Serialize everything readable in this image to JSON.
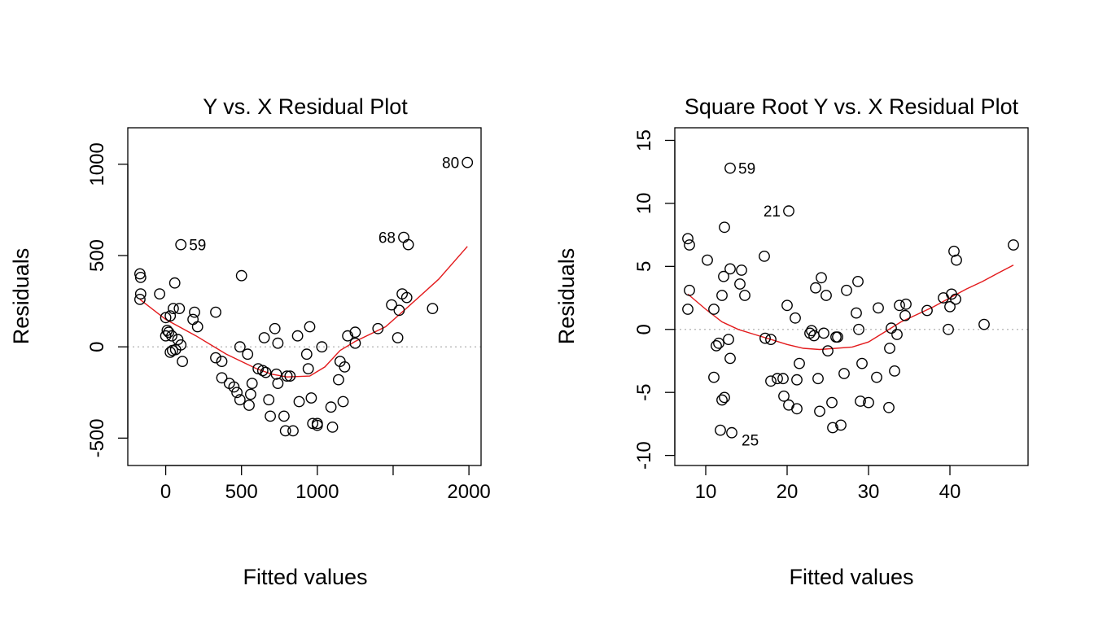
{
  "colors": {
    "points": "#000000",
    "lowess": "#e31a1c",
    "zero_line": "#bebebe",
    "background": "#ffffff"
  },
  "chart_data": [
    {
      "type": "scatter",
      "title": "Y vs. X Residual Plot",
      "xlabel": "Fitted values",
      "ylabel": "Residuals",
      "xlim": [
        -250,
        2080
      ],
      "ylim": [
        -650,
        1200
      ],
      "xticks": [
        0,
        500,
        1000,
        2000
      ],
      "xtick_labels": [
        "0",
        "500",
        "1000",
        "2000"
      ],
      "xtick_marks": [
        0,
        500,
        1000,
        1500,
        2000
      ],
      "yticks": [
        -500,
        0,
        500,
        1000
      ],
      "ytick_labels": [
        "-500",
        "0",
        "500",
        "1000"
      ],
      "zero_line": 0,
      "points": [
        [
          -170,
          400
        ],
        [
          -165,
          380
        ],
        [
          -165,
          290
        ],
        [
          -170,
          260
        ],
        [
          -40,
          290
        ],
        [
          0,
          160
        ],
        [
          0,
          60
        ],
        [
          10,
          90
        ],
        [
          20,
          80
        ],
        [
          30,
          170
        ],
        [
          40,
          60
        ],
        [
          50,
          210
        ],
        [
          60,
          350
        ],
        [
          30,
          -30
        ],
        [
          45,
          -20
        ],
        [
          65,
          -15
        ],
        [
          80,
          40
        ],
        [
          90,
          210
        ],
        [
          100,
          10
        ],
        [
          110,
          -80
        ],
        [
          180,
          150
        ],
        [
          190,
          190
        ],
        [
          210,
          110
        ],
        [
          330,
          190
        ],
        [
          330,
          -60
        ],
        [
          370,
          -80
        ],
        [
          370,
          -170
        ],
        [
          420,
          -200
        ],
        [
          450,
          -220
        ],
        [
          470,
          -250
        ],
        [
          490,
          -290
        ],
        [
          490,
          0
        ],
        [
          500,
          390
        ],
        [
          540,
          -40
        ],
        [
          550,
          -320
        ],
        [
          560,
          -260
        ],
        [
          570,
          -200
        ],
        [
          610,
          -120
        ],
        [
          640,
          -130
        ],
        [
          650,
          50
        ],
        [
          660,
          -140
        ],
        [
          680,
          -290
        ],
        [
          690,
          -380
        ],
        [
          720,
          100
        ],
        [
          730,
          -150
        ],
        [
          740,
          20
        ],
        [
          740,
          -200
        ],
        [
          780,
          -380
        ],
        [
          790,
          -460
        ],
        [
          800,
          -160
        ],
        [
          820,
          -160
        ],
        [
          840,
          -460
        ],
        [
          870,
          60
        ],
        [
          880,
          -300
        ],
        [
          930,
          -40
        ],
        [
          940,
          -120
        ],
        [
          950,
          110
        ],
        [
          960,
          -280
        ],
        [
          970,
          -420
        ],
        [
          1000,
          -420
        ],
        [
          1000,
          -430
        ],
        [
          1030,
          0
        ],
        [
          1090,
          -330
        ],
        [
          1100,
          -440
        ],
        [
          1140,
          -180
        ],
        [
          1150,
          -80
        ],
        [
          1170,
          -300
        ],
        [
          1180,
          -110
        ],
        [
          1200,
          60
        ],
        [
          1250,
          80
        ],
        [
          1250,
          20
        ],
        [
          1400,
          100
        ],
        [
          1490,
          230
        ],
        [
          1530,
          50
        ],
        [
          1540,
          200
        ],
        [
          1560,
          290
        ],
        [
          1570,
          600
        ],
        [
          1590,
          270
        ],
        [
          1600,
          560
        ],
        [
          1760,
          210
        ],
        [
          1990,
          1010
        ],
        [
          100,
          560
        ]
      ],
      "lowess": [
        [
          -170,
          260
        ],
        [
          0,
          150
        ],
        [
          200,
          60
        ],
        [
          400,
          -40
        ],
        [
          600,
          -120
        ],
        [
          700,
          -150
        ],
        [
          800,
          -165
        ],
        [
          950,
          -160
        ],
        [
          1050,
          -110
        ],
        [
          1150,
          -20
        ],
        [
          1250,
          30
        ],
        [
          1450,
          110
        ],
        [
          1600,
          220
        ],
        [
          1800,
          370
        ],
        [
          1990,
          550
        ]
      ],
      "annotations": [
        {
          "label": "59",
          "x": 100,
          "y": 560
        },
        {
          "label": "68",
          "x": 1570,
          "y": 600
        },
        {
          "label": "80",
          "x": 1990,
          "y": 1010
        }
      ]
    },
    {
      "type": "scatter",
      "title": "Square Root Y vs. X Residual Plot",
      "xlabel": "Fitted values",
      "ylabel": "Residuals",
      "xlim": [
        6.2,
        49.6
      ],
      "ylim": [
        -10.8,
        16.0
      ],
      "xticks": [
        10,
        20,
        30,
        40
      ],
      "xtick_labels": [
        "10",
        "20",
        "30",
        "40"
      ],
      "xtick_marks": [
        10,
        20,
        30,
        40
      ],
      "yticks": [
        -10,
        -5,
        0,
        5,
        10,
        15
      ],
      "ytick_labels": [
        "-10",
        "-5",
        "0",
        "5",
        "10",
        "15"
      ],
      "zero_line": 0,
      "points": [
        [
          7.8,
          7.2
        ],
        [
          8.0,
          6.7
        ],
        [
          8.0,
          3.1
        ],
        [
          7.8,
          1.6
        ],
        [
          10.2,
          5.5
        ],
        [
          11.0,
          1.6
        ],
        [
          11.0,
          -3.8
        ],
        [
          11.3,
          -1.3
        ],
        [
          11.6,
          -1.1
        ],
        [
          12.0,
          2.7
        ],
        [
          12.2,
          4.2
        ],
        [
          12.3,
          8.1
        ],
        [
          12.0,
          -5.6
        ],
        [
          12.3,
          -5.4
        ],
        [
          11.8,
          -8.0
        ],
        [
          12.8,
          -0.8
        ],
        [
          13.0,
          4.8
        ],
        [
          13.0,
          -2.3
        ],
        [
          13.2,
          -8.2
        ],
        [
          13.0,
          12.8
        ],
        [
          14.2,
          3.6
        ],
        [
          14.4,
          4.7
        ],
        [
          14.8,
          2.7
        ],
        [
          17.2,
          5.8
        ],
        [
          17.3,
          -0.7
        ],
        [
          18.0,
          -0.8
        ],
        [
          18.0,
          -4.1
        ],
        [
          18.8,
          -3.9
        ],
        [
          19.5,
          -3.9
        ],
        [
          19.6,
          -5.3
        ],
        [
          20.0,
          1.9
        ],
        [
          20.2,
          -6.0
        ],
        [
          20.2,
          9.4
        ],
        [
          21.0,
          0.9
        ],
        [
          21.2,
          -4.0
        ],
        [
          21.2,
          -6.3
        ],
        [
          21.5,
          -2.7
        ],
        [
          22.8,
          -0.3
        ],
        [
          23.0,
          -0.1
        ],
        [
          23.3,
          -0.5
        ],
        [
          23.5,
          3.3
        ],
        [
          23.8,
          -3.9
        ],
        [
          24.0,
          -6.5
        ],
        [
          24.2,
          4.1
        ],
        [
          24.5,
          -0.3
        ],
        [
          24.8,
          2.7
        ],
        [
          25.0,
          -1.7
        ],
        [
          25.5,
          -5.8
        ],
        [
          25.6,
          -7.8
        ],
        [
          26.0,
          -0.6
        ],
        [
          26.2,
          -0.6
        ],
        [
          26.6,
          -7.6
        ],
        [
          27.0,
          -3.5
        ],
        [
          27.3,
          3.1
        ],
        [
          28.5,
          1.3
        ],
        [
          28.7,
          3.8
        ],
        [
          28.8,
          0.0
        ],
        [
          29.0,
          -5.7
        ],
        [
          29.2,
          -2.7
        ],
        [
          30.0,
          -5.8
        ],
        [
          31.0,
          -3.8
        ],
        [
          31.2,
          1.7
        ],
        [
          32.5,
          -6.2
        ],
        [
          32.6,
          -1.5
        ],
        [
          32.8,
          0.1
        ],
        [
          33.2,
          -3.3
        ],
        [
          33.5,
          -0.4
        ],
        [
          33.8,
          1.9
        ],
        [
          34.5,
          1.1
        ],
        [
          34.6,
          2.0
        ],
        [
          37.2,
          1.5
        ],
        [
          39.2,
          2.5
        ],
        [
          39.8,
          0.0
        ],
        [
          40.0,
          1.8
        ],
        [
          40.2,
          2.8
        ],
        [
          40.5,
          6.2
        ],
        [
          40.7,
          2.4
        ],
        [
          40.8,
          5.5
        ],
        [
          44.2,
          0.4
        ],
        [
          47.8,
          6.7
        ]
      ],
      "lowess": [
        [
          7.8,
          2.8
        ],
        [
          10,
          1.6
        ],
        [
          12,
          0.6
        ],
        [
          14,
          0.0
        ],
        [
          16,
          -0.4
        ],
        [
          18,
          -0.8
        ],
        [
          20,
          -1.2
        ],
        [
          22,
          -1.5
        ],
        [
          24,
          -1.6
        ],
        [
          26,
          -1.5
        ],
        [
          28,
          -1.4
        ],
        [
          30,
          -1.0
        ],
        [
          32,
          -0.2
        ],
        [
          34,
          0.6
        ],
        [
          36,
          1.2
        ],
        [
          38,
          1.8
        ],
        [
          40,
          2.5
        ],
        [
          42,
          3.2
        ],
        [
          44,
          3.8
        ],
        [
          46,
          4.5
        ],
        [
          47.8,
          5.1
        ]
      ],
      "annotations": [
        {
          "label": "59",
          "x": 13.0,
          "y": 12.8
        },
        {
          "label": "21",
          "x": 20.2,
          "y": 9.4
        },
        {
          "label": "25",
          "x": 13.2,
          "y": -8.2
        }
      ]
    }
  ]
}
